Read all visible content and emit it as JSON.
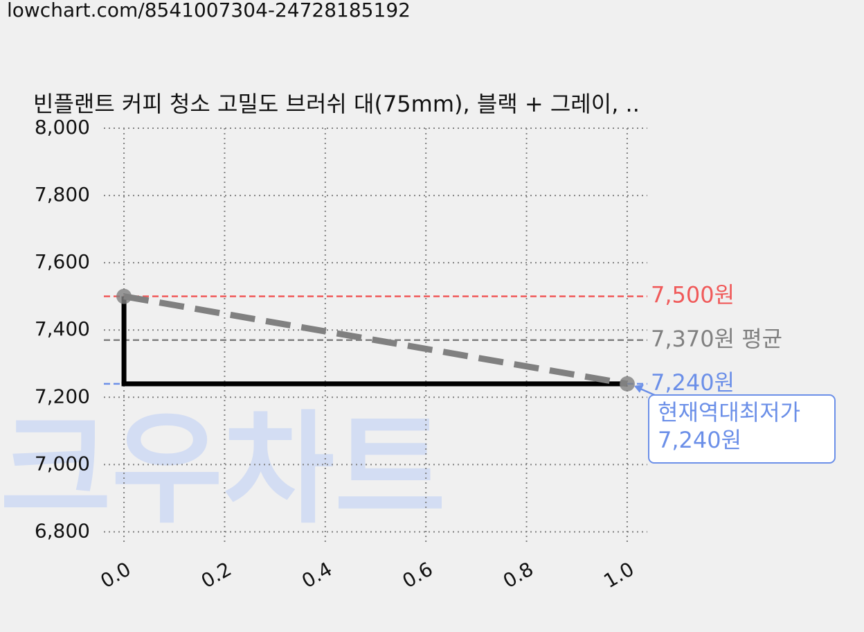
{
  "url": "lowchart.com/8541007304-24728185192",
  "watermark": "크우차트",
  "chart_data": {
    "type": "line",
    "title": "빈플랜트 커피 청소 고밀도 브러쉬 대(75mm), 블랙 + 그레이, ..",
    "x": [
      0,
      1
    ],
    "series": [
      {
        "color": "#000000",
        "values": [
          7500,
          7240
        ],
        "step": "pre"
      },
      {
        "color": "#808080",
        "values": [
          7500,
          7240
        ],
        "dashed": true,
        "markers": true
      }
    ],
    "reference_lines": [
      {
        "value": 7500,
        "label": "7,500원",
        "color": "#f05a5a"
      },
      {
        "value": 7370,
        "label": "7,370원 평균",
        "color": "#808080"
      },
      {
        "value": 7240,
        "label": "7,240원",
        "color": "#6b8fe8"
      }
    ],
    "annotation": {
      "lines": [
        "현재역대최저가",
        "7,240원"
      ],
      "x": 1,
      "value": 7240,
      "color": "#6b8fe8"
    },
    "xlim": [
      -0.04,
      1.04
    ],
    "ylim": [
      6770,
      8000
    ],
    "xticks": [
      {
        "value": 0,
        "label": "0.0"
      },
      0.2,
      0.4,
      0.6,
      0.8,
      {
        "value": 1,
        "label": "1.0"
      }
    ],
    "yticks": [
      {
        "value": 6800,
        "label": "6,800"
      },
      {
        "value": 7000,
        "label": "7,000"
      },
      {
        "value": 7200,
        "label": "7,200"
      },
      {
        "value": 7400,
        "label": "7,400"
      },
      {
        "value": 7600,
        "label": "7,600"
      },
      {
        "value": 7800,
        "label": "7,800"
      },
      {
        "value": 8000,
        "label": "8,000"
      }
    ],
    "grid": true
  }
}
